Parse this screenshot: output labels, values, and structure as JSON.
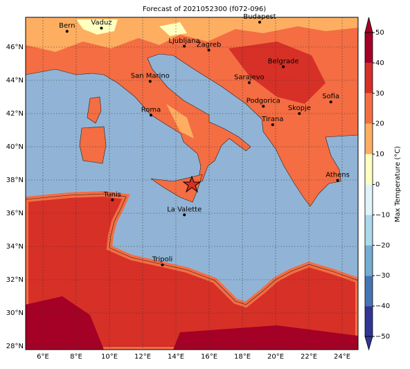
{
  "title": "Forecast of 2021052300 (f072-096)",
  "x_ticks": [
    {
      "value": 6,
      "label": "6°E"
    },
    {
      "value": 8,
      "label": "8°E"
    },
    {
      "value": 10,
      "label": "10°E"
    },
    {
      "value": 12,
      "label": "12°E"
    },
    {
      "value": 14,
      "label": "14°E"
    },
    {
      "value": 16,
      "label": "16°E"
    },
    {
      "value": 18,
      "label": "18°E"
    },
    {
      "value": 20,
      "label": "20°E"
    },
    {
      "value": 22,
      "label": "22°E"
    },
    {
      "value": 24,
      "label": "24°E"
    }
  ],
  "y_ticks": [
    {
      "value": 28,
      "label": "28°N"
    },
    {
      "value": 30,
      "label": "30°N"
    },
    {
      "value": 32,
      "label": "32°N"
    },
    {
      "value": 34,
      "label": "34°N"
    },
    {
      "value": 36,
      "label": "36°N"
    },
    {
      "value": 38,
      "label": "38°N"
    },
    {
      "value": 40,
      "label": "40°N"
    },
    {
      "value": 42,
      "label": "42°N"
    },
    {
      "value": 44,
      "label": "44°N"
    },
    {
      "value": 46,
      "label": "46°N"
    }
  ],
  "cities": [
    "Bern",
    "Vaduz",
    "Budapest",
    "Ljubljana",
    "Zagreb",
    "Belgrade",
    "San Marino",
    "Sarajevo",
    "Podgorica",
    "Skopje",
    "Sofia",
    "Roma",
    "Tirana",
    "Athens",
    "Tunis",
    "La Valette",
    "Tripoli"
  ],
  "colorbar": {
    "label": "Max Temperature (°C)",
    "ticks": [
      {
        "value": -50,
        "label": "−50"
      },
      {
        "value": -40,
        "label": "−40"
      },
      {
        "value": -30,
        "label": "−30"
      },
      {
        "value": -20,
        "label": "−20"
      },
      {
        "value": -10,
        "label": "−10"
      },
      0,
      10,
      20,
      30,
      40,
      50
    ],
    "colors": [
      "#313695",
      "#4575b4",
      "#74add1",
      "#abd9e9",
      "#e0f3f8",
      "#ffffbf",
      "#fdae61",
      "#f46d43",
      "#d73027",
      "#a50026"
    ]
  }
}
